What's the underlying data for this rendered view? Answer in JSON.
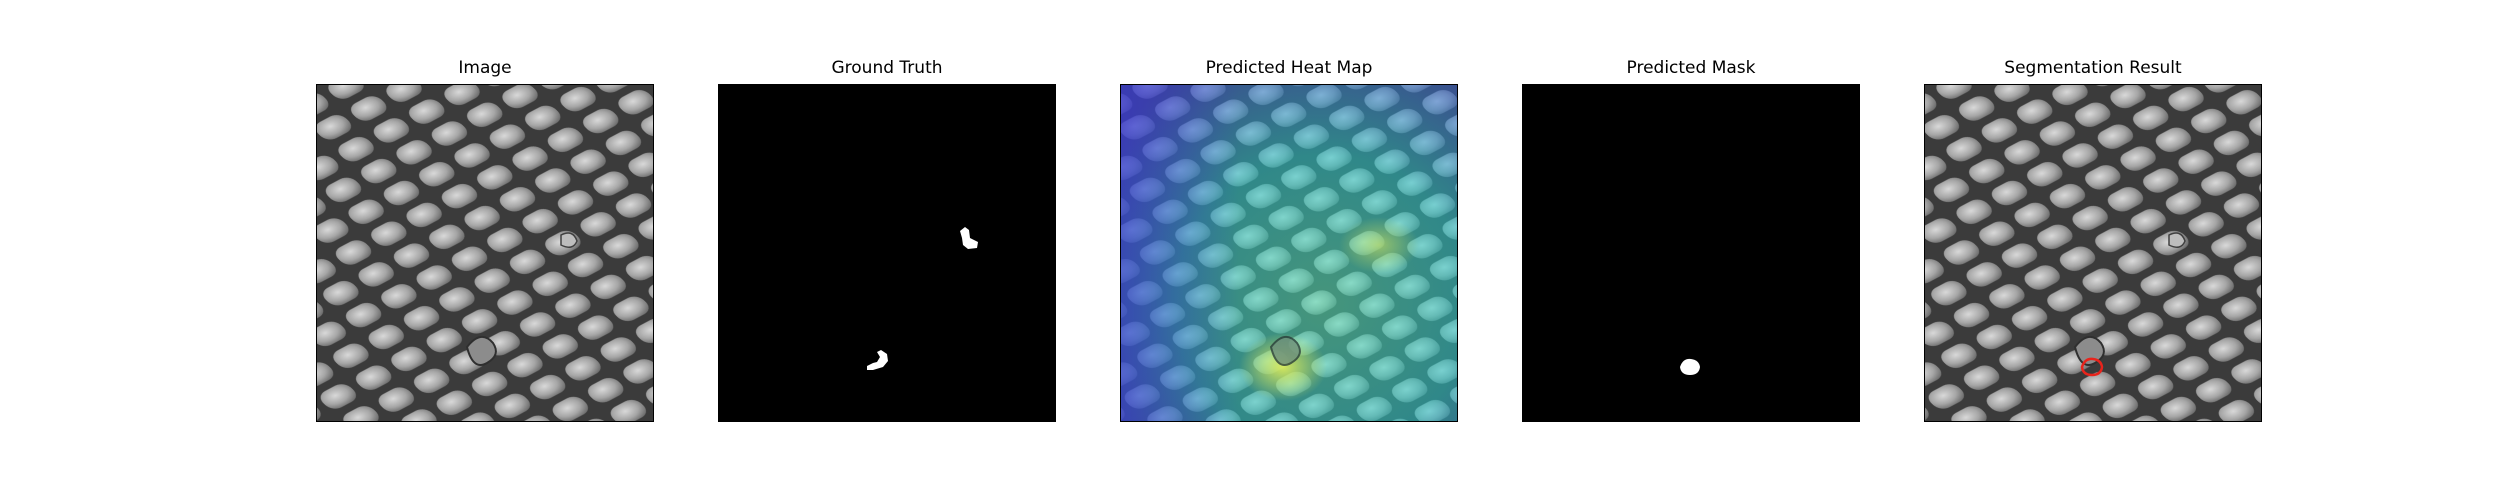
{
  "figure": {
    "panels": [
      {
        "key": "image",
        "title": "Image"
      },
      {
        "key": "ground_truth",
        "title": "Ground Truth"
      },
      {
        "key": "heat_map",
        "title": "Predicted Heat Map"
      },
      {
        "key": "mask",
        "title": "Predicted Mask"
      },
      {
        "key": "segmentation",
        "title": "Segmentation Result"
      }
    ]
  },
  "colors": {
    "background": "#ffffff",
    "mask_background": "#000000",
    "mask_foreground": "#ffffff",
    "contour": "#e8241c",
    "mesh_cell": "#9a9a9a",
    "mesh_gap": "#3a3a3a"
  }
}
